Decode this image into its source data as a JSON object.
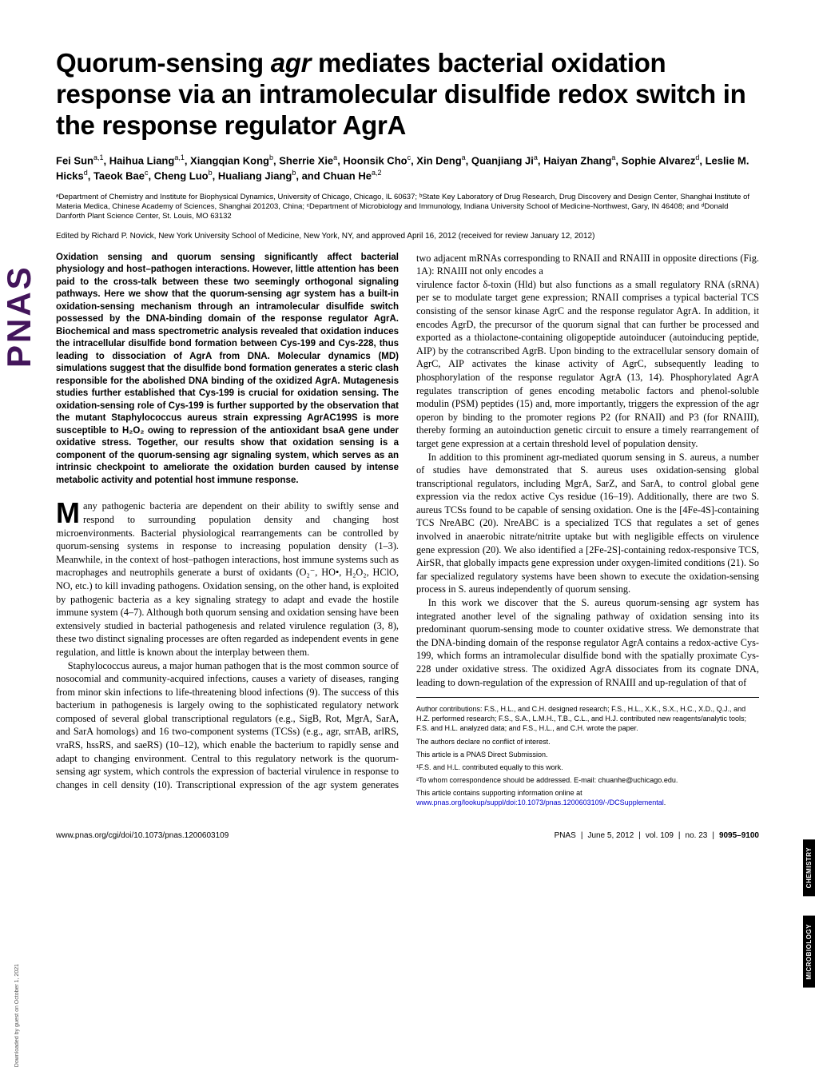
{
  "logo_text": "PNAS",
  "title_pre": "Quorum-sensing ",
  "title_gene": "agr",
  "title_post": " mediates bacterial oxidation response via an intramolecular disulfide redox switch in the response regulator AgrA",
  "authors_html": "Fei Sun<sup>a,1</sup>, Haihua Liang<sup>a,1</sup>, Xiangqian Kong<sup>b</sup>, Sherrie Xie<sup>a</sup>, Hoonsik Cho<sup>c</sup>, Xin Deng<sup>a</sup>, Quanjiang Ji<sup>a</sup>, Haiyan Zhang<sup>a</sup>, Sophie Alvarez<sup>d</sup>, Leslie M. Hicks<sup>d</sup>, Taeok Bae<sup>c</sup>, Cheng Luo<sup>b</sup>, Hualiang Jiang<sup>b</sup>, and Chuan He<sup>a,2</sup>",
  "affiliations": "ᵃDepartment of Chemistry and Institute for Biophysical Dynamics, University of Chicago, Chicago, IL 60637; ᵇState Key Laboratory of Drug Research, Drug Discovery and Design Center, Shanghai Institute of Materia Medica, Chinese Academy of Sciences, Shanghai 201203, China; ᶜDepartment of Microbiology and Immunology, Indiana University School of Medicine-Northwest, Gary, IN 46408; and ᵈDonald Danforth Plant Science Center, St. Louis, MO 63132",
  "edited": "Edited by Richard P. Novick, New York University School of Medicine, New York, NY, and approved April 16, 2012 (received for review January 12, 2012)",
  "abstract": "Oxidation sensing and quorum sensing significantly affect bacterial physiology and host–pathogen interactions. However, little attention has been paid to the cross-talk between these two seemingly orthogonal signaling pathways. Here we show that the quorum-sensing agr system has a built-in oxidation-sensing mechanism through an intramolecular disulfide switch possessed by the DNA-binding domain of the response regulator AgrA. Biochemical and mass spectrometric analysis revealed that oxidation induces the intracellular disulfide bond formation between Cys-199 and Cys-228, thus leading to dissociation of AgrA from DNA. Molecular dynamics (MD) simulations suggest that the disulfide bond formation generates a steric clash responsible for the abolished DNA binding of the oxidized AgrA. Mutagenesis studies further established that Cys-199 is crucial for oxidation sensing. The oxidation-sensing role of Cys-199 is further supported by the observation that the mutant Staphylococcus aureus strain expressing AgrAC199S is more susceptible to H₂O₂ owing to repression of the antioxidant bsaA gene under oxidative stress. Together, our results show that oxidation sensing is a component of the quorum-sensing agr signaling system, which serves as an intrinsic checkpoint to ameliorate the oxidation burden caused by intense metabolic activity and potential host immune response.",
  "para1_first": "M",
  "para1": "any pathogenic bacteria are dependent on their ability to swiftly sense and respond to surrounding population density and changing host microenvironments. Bacterial physiological rearrangements can be controlled by quorum-sensing systems in response to increasing population density (1–3). Meanwhile, in the context of host–pathogen interactions, host immune systems such as macrophages and neutrophils generate a burst of oxidants (O₂⁻, HO•, H₂O₂, HClO, NO, etc.) to kill invading pathogens. Oxidation sensing, on the other hand, is exploited by pathogenic bacteria as a key signaling strategy to adapt and evade the hostile immune system (4–7). Although both quorum sensing and oxidation sensing have been extensively studied in bacterial pathogenesis and related virulence regulation (3, 8), these two distinct signaling processes are often regarded as independent events in gene regulation, and little is known about the interplay between them.",
  "para2": "Staphylococcus aureus, a major human pathogen that is the most common source of nosocomial and community-acquired infections, causes a variety of diseases, ranging from minor skin infections to life-threatening blood infections (9). The success of this bacterium in pathogenesis is largely owing to the sophisticated regulatory network composed of several global transcriptional regulators (e.g., SigB, Rot, MgrA, SarA, and SarA homologs) and 16 two-component systems (TCSs) (e.g., agr, srrAB, arlRS, vraRS, hssRS, and saeRS) (10–12), which enable the bacterium to rapidly sense and adapt to changing environment. Central to this regulatory network is the quorum-sensing agr system, which controls the expression of bacterial virulence in response to changes in cell density (10). Transcriptional expression of the agr system generates two adjacent mRNAs corresponding to RNAII and RNAIII in opposite directions (Fig. 1A): RNAIII not only encodes a",
  "para3": "virulence factor δ-toxin (Hld) but also functions as a small regulatory RNA (sRNA) per se to modulate target gene expression; RNAII comprises a typical bacterial TCS consisting of the sensor kinase AgrC and the response regulator AgrA. In addition, it encodes AgrD, the precursor of the quorum signal that can further be processed and exported as a thiolactone-containing oligopeptide autoinducer (autoinducing peptide, AIP) by the cotranscribed AgrB. Upon binding to the extracellular sensory domain of AgrC, AIP activates the kinase activity of AgrC, subsequently leading to phosphorylation of the response regulator AgrA (13, 14). Phosphorylated AgrA regulates transcription of genes encoding metabolic factors and phenol-soluble modulin (PSM) peptides (15) and, more importantly, triggers the expression of the agr operon by binding to the promoter regions P2 (for RNAII) and P3 (for RNAIII), thereby forming an autoinduction genetic circuit to ensure a timely rearrangement of target gene expression at a certain threshold level of population density.",
  "para4": "In addition to this prominent agr-mediated quorum sensing in S. aureus, a number of studies have demonstrated that S. aureus uses oxidation-sensing global transcriptional regulators, including MgrA, SarZ, and SarA, to control global gene expression via the redox active Cys residue (16–19). Additionally, there are two S. aureus TCSs found to be capable of sensing oxidation. One is the [4Fe-4S]-containing TCS NreABC (20). NreABC is a specialized TCS that regulates a set of genes involved in anaerobic nitrate/nitrite uptake but with negligible effects on virulence gene expression (20). We also identified a [2Fe-2S]-containing redox-responsive TCS, AirSR, that globally impacts gene expression under oxygen-limited conditions (21). So far specialized regulatory systems have been shown to execute the oxidation-sensing process in S. aureus independently of quorum sensing.",
  "para5": "In this work we discover that the S. aureus quorum-sensing agr system has integrated another level of the signaling pathway of oxidation sensing into its predominant quorum-sensing mode to counter oxidative stress. We demonstrate that the DNA-binding domain of the response regulator AgrA contains a redox-active Cys-199, which forms an intramolecular disulfide bond with the spatially proximate Cys-228 under oxidative stress. The oxidized AgrA dissociates from its cognate DNA, leading to down-regulation of the expression of RNAIII and up-regulation of that of",
  "footnotes": {
    "contrib": "Author contributions: F.S., H.L., and C.H. designed research; F.S., H.L., X.K., S.X., H.C., X.D., Q.J., and H.Z. performed research; F.S., S.A., L.M.H., T.B., C.L., and H.J. contributed new reagents/analytic tools; F.S. and H.L. analyzed data; and F.S., H.L., and C.H. wrote the paper.",
    "conflict": "The authors declare no conflict of interest.",
    "direct": "This article is a PNAS Direct Submission.",
    "equal": "¹F.S. and H.L. contributed equally to this work.",
    "corr": "²To whom correspondence should be addressed. E-mail: chuanhe@uchicago.edu.",
    "si_pre": "This article contains supporting information online at ",
    "si_link": "www.pnas.org/lookup/suppl/doi:10.1073/pnas.1200603109/-/DCSupplemental",
    "si_post": "."
  },
  "side_tabs": [
    "CHEMISTRY",
    "MICROBIOLOGY"
  ],
  "footer": {
    "doi": "www.pnas.org/cgi/doi/10.1073/pnas.1200603109",
    "journal": "PNAS",
    "date": "June 5, 2012",
    "vol": "vol. 109",
    "issue": "no. 23",
    "pages": "9095–9100"
  },
  "download_note": "Downloaded by guest on October 1, 2021"
}
